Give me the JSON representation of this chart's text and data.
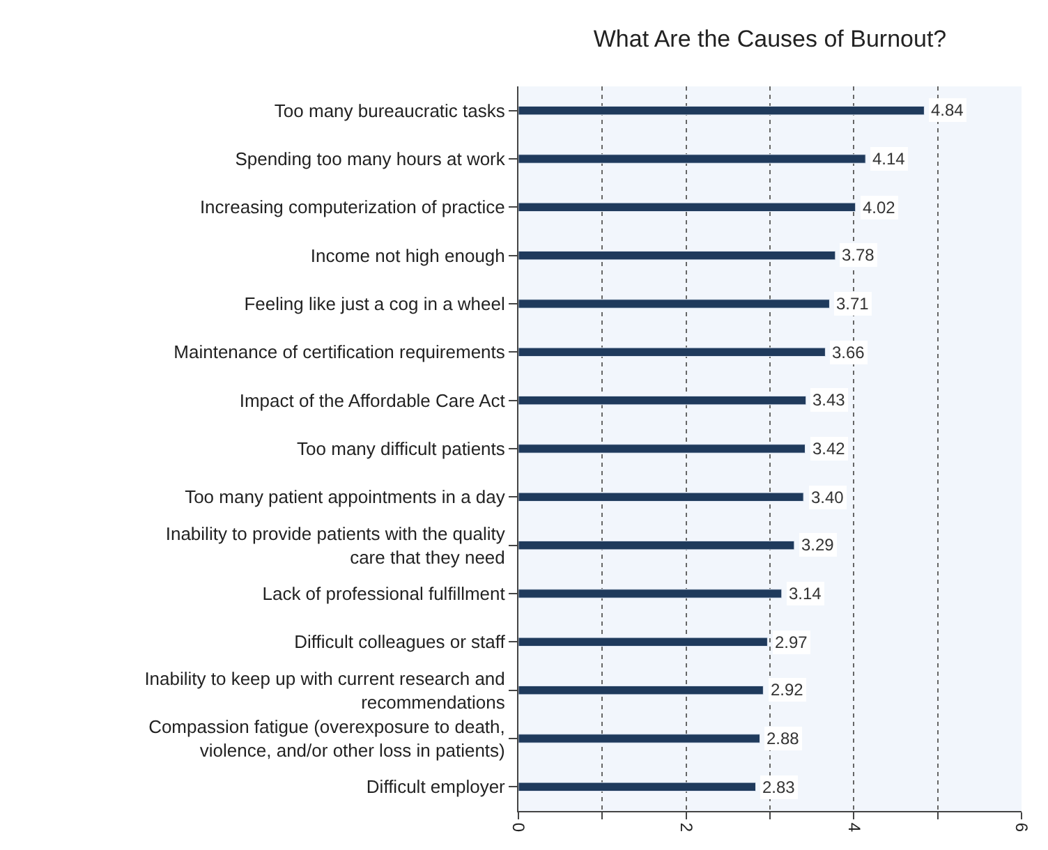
{
  "chart_data": {
    "type": "bar",
    "orientation": "horizontal",
    "title": "What Are the Causes of Burnout?",
    "categories": [
      "Too many bureaucratic tasks",
      "Spending too many hours at work",
      "Increasing computerization of practice",
      "Income not high enough",
      "Feeling like just a cog in a wheel",
      "Maintenance of certification requirements",
      "Impact of the Affordable Care Act",
      "Too many difficult patients",
      "Too many patient appointments in a day",
      "Inability to provide patients with the quality\ncare that they need",
      "Lack of professional fulfillment",
      "Difficult colleagues or staff",
      "Inability to keep up with current research and\nrecommendations",
      "Compassion fatigue (overexposure to death,\nviolence, and/or other loss in patients)",
      "Difficult employer"
    ],
    "values": [
      4.84,
      4.14,
      4.02,
      3.78,
      3.71,
      3.66,
      3.43,
      3.42,
      3.4,
      3.29,
      3.14,
      2.97,
      2.92,
      2.88,
      2.83
    ],
    "value_labels": [
      "4.84",
      "4.14",
      "4.02",
      "3.78",
      "3.71",
      "3.66",
      "3.43",
      "3.42",
      "3.40",
      "3.29",
      "3.14",
      "2.97",
      "2.92",
      "2.88",
      "2.83"
    ],
    "color": "#1f3a5c",
    "grid": "x",
    "xlim": [
      0,
      6
    ],
    "xticks": [
      0,
      {
        "value": 1,
        "label": null
      },
      2,
      {
        "value": 3,
        "label": null
      },
      4,
      {
        "value": 5,
        "label": null
      },
      6
    ]
  }
}
